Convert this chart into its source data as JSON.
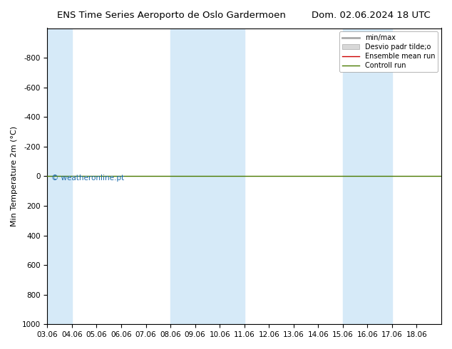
{
  "title_left": "ENS Time Series Aeroporto de Oslo Gardermoen",
  "title_right": "Dom. 02.06.2024 18 UTC",
  "ylabel": "Min Temperature 2m (°C)",
  "xlim": [
    0,
    16
  ],
  "ylim": [
    -1000,
    1000
  ],
  "yticks": [
    -800,
    -600,
    -400,
    -200,
    0,
    200,
    400,
    600,
    800,
    1000
  ],
  "xtick_labels": [
    "03.06",
    "04.06",
    "05.06",
    "06.06",
    "07.06",
    "08.06",
    "09.06",
    "10.06",
    "11.06",
    "12.06",
    "13.06",
    "14.06",
    "15.06",
    "16.06",
    "17.06",
    "18.06"
  ],
  "blue_bands": [
    [
      0,
      1
    ],
    [
      5,
      7
    ],
    [
      7,
      8
    ],
    [
      12,
      13
    ],
    [
      13,
      14
    ]
  ],
  "green_line_y": 0,
  "control_run_color": "#4a7a00",
  "ensemble_mean_color": "#cc0000",
  "min_max_color": "#c8c8c8",
  "std_color": "#d8d8d8",
  "band_color": "#d6eaf8",
  "watermark": "© weatheronline.pt",
  "bg_color": "#ffffff",
  "plot_bg_color": "#ffffff"
}
